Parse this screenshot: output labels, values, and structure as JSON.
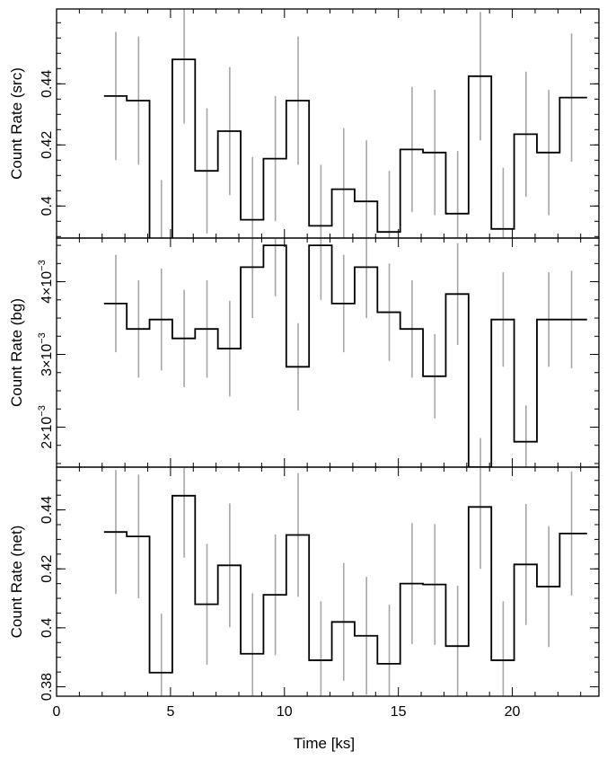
{
  "chart_data": [
    {
      "type": "line",
      "style": "step",
      "panel": "top",
      "ylabel": "Count Rate (src)",
      "xlim": [
        0,
        23.8
      ],
      "ylim": [
        0.3895,
        0.4645
      ],
      "y_ticks": [
        0.4,
        0.42,
        0.44
      ],
      "y_tick_labels": [
        "0.4",
        "0.42",
        "0.44"
      ],
      "x_edges": [
        2.08,
        3.08,
        4.08,
        5.08,
        6.08,
        7.08,
        8.08,
        9.08,
        10.08,
        11.08,
        12.08,
        13.08,
        14.08,
        15.08,
        16.08,
        17.08,
        18.08,
        19.08,
        20.08,
        21.08,
        22.08,
        23.28
      ],
      "x": [
        2.6,
        3.6,
        4.6,
        5.6,
        6.6,
        7.6,
        8.6,
        9.6,
        10.6,
        11.6,
        12.6,
        13.6,
        14.6,
        15.6,
        16.6,
        17.6,
        18.6,
        19.6,
        20.6,
        21.6,
        22.6
      ],
      "values": [
        0.436,
        0.4345,
        0.3885,
        0.448,
        0.4115,
        0.4245,
        0.3955,
        0.4155,
        0.4345,
        0.3935,
        0.4055,
        0.4015,
        0.3915,
        0.4185,
        0.4175,
        0.3975,
        0.4425,
        0.3925,
        0.4235,
        0.4175,
        0.4355
      ],
      "errors": [
        0.021,
        0.021,
        0.02,
        0.021,
        0.0205,
        0.021,
        0.0205,
        0.0205,
        0.021,
        0.02,
        0.02,
        0.02,
        0.02,
        0.0205,
        0.0205,
        0.0205,
        0.021,
        0.02,
        0.0205,
        0.0205,
        0.021
      ],
      "error_color": "#a6a6a6",
      "line_color": "#000000"
    },
    {
      "type": "line",
      "style": "step",
      "panel": "middle",
      "ylabel": "Count Rate (bg)",
      "ylim": [
        0.00145,
        0.0046
      ],
      "y_ticks": [
        0.002,
        0.003,
        0.004
      ],
      "y_tick_labels": [
        {
          "mantissa": "2×10",
          "exponent": "−3"
        },
        {
          "mantissa": "3×10",
          "exponent": "−3"
        },
        {
          "mantissa": "4×10",
          "exponent": "−3"
        }
      ],
      "values": [
        0.0037,
        0.00335,
        0.00348,
        0.00322,
        0.00335,
        0.00308,
        0.0042,
        0.0045,
        0.00283,
        0.0045,
        0.0037,
        0.0042,
        0.00358,
        0.00335,
        0.0027,
        0.00383,
        0.00145,
        0.00348,
        0.0018,
        0.00348,
        0.00348
      ],
      "errors": [
        0.00067,
        0.00067,
        0.0007,
        0.00067,
        0.00067,
        0.00066,
        0.0007,
        0.0007,
        0.0006,
        0.00075,
        0.00067,
        0.0007,
        0.00067,
        0.00067,
        0.00058,
        0.0007,
        0.0004,
        0.00065,
        0.0005,
        0.00065,
        0.00067
      ],
      "error_color": "#a6a6a6",
      "line_color": "#000000"
    },
    {
      "type": "line",
      "style": "step",
      "panel": "bottom",
      "ylabel": "Count Rate (net)",
      "xlabel": "Time [ks]",
      "ylim": [
        0.3768,
        0.4545
      ],
      "y_ticks": [
        0.38,
        0.4,
        0.42,
        0.44
      ],
      "y_tick_labels": [
        "0.38",
        "0.4",
        "0.42",
        "0.44"
      ],
      "x_ticks": [
        0,
        5,
        10,
        15,
        20
      ],
      "x_tick_labels": [
        "0",
        "5",
        "10",
        "15",
        "20"
      ],
      "values": [
        0.4325,
        0.431,
        0.3848,
        0.4448,
        0.408,
        0.4212,
        0.3912,
        0.4112,
        0.4315,
        0.389,
        0.402,
        0.3973,
        0.3878,
        0.415,
        0.4147,
        0.3938,
        0.441,
        0.389,
        0.4215,
        0.414,
        0.432
      ],
      "errors": [
        0.021,
        0.021,
        0.02,
        0.021,
        0.0205,
        0.021,
        0.0205,
        0.0205,
        0.021,
        0.02,
        0.02,
        0.02,
        0.02,
        0.0205,
        0.0205,
        0.0205,
        0.021,
        0.02,
        0.0205,
        0.0205,
        0.021
      ],
      "error_color": "#a6a6a6",
      "line_color": "#000000"
    }
  ]
}
